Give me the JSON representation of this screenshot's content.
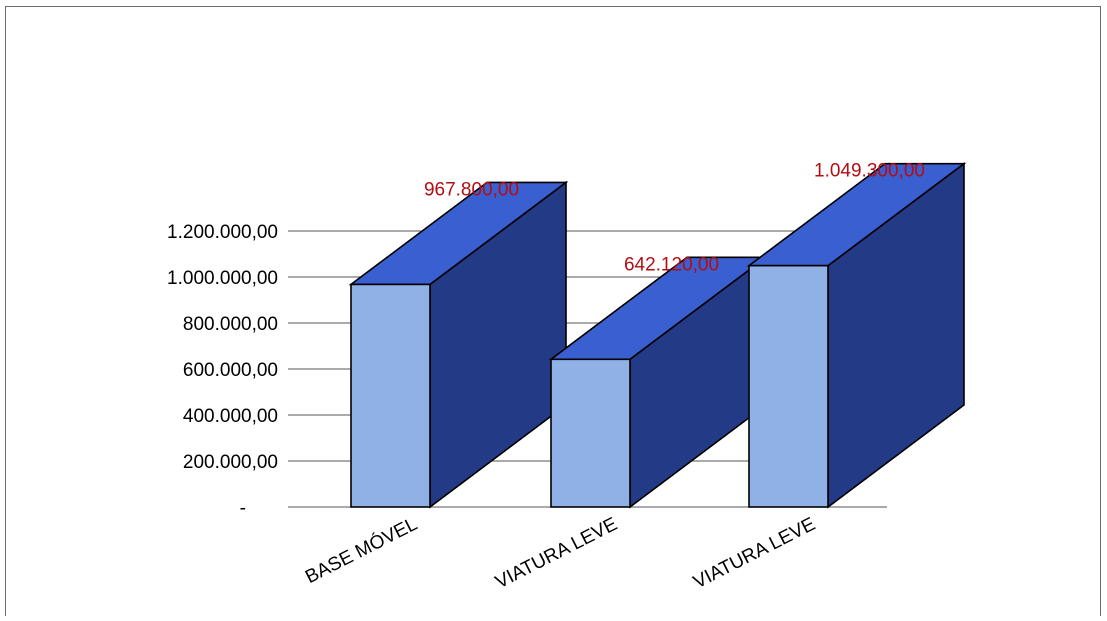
{
  "chart_data": {
    "type": "bar",
    "title": "",
    "xlabel": "",
    "ylabel": "",
    "categories": [
      "BASE MÓVEL",
      "VIATURA LEVE",
      "VIATURA LEVE"
    ],
    "values": [
      967800,
      642120,
      1049300
    ],
    "data_labels": [
      "967.800,00",
      "642.120,00",
      "1.049.300,00"
    ],
    "ylim": [
      0,
      1200000
    ],
    "y_ticks": [
      {
        "value": 0,
        "label": "-"
      },
      {
        "value": 200000,
        "label": "200.000,00"
      },
      {
        "value": 400000,
        "label": "400.000,00"
      },
      {
        "value": 600000,
        "label": "600.000,00"
      },
      {
        "value": 800000,
        "label": "800.000,00"
      },
      {
        "value": 1000000,
        "label": "1.000.000,00"
      },
      {
        "value": 1200000,
        "label": "1.200.000,00"
      }
    ],
    "grid": true,
    "three_d": true,
    "legend": "none",
    "colors": {
      "front": "#8fb1e6",
      "top": "#3a5fd0",
      "side": "#233a86",
      "label": "#b30d12",
      "grid": "#555555"
    }
  }
}
